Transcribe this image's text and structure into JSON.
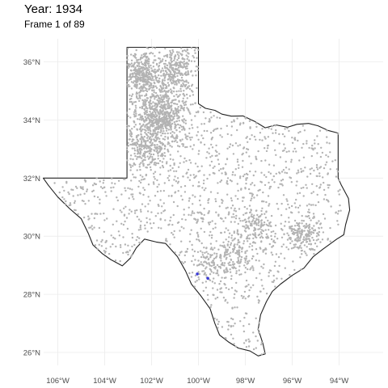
{
  "title": "Year: 1934",
  "subtitle": "Frame 1 of 89",
  "x_ticks": [
    {
      "value": -106,
      "label": "106°W"
    },
    {
      "value": -104,
      "label": "104°W"
    },
    {
      "value": -102,
      "label": "102°W"
    },
    {
      "value": -100,
      "label": "100°W"
    },
    {
      "value": -98,
      "label": "98°W"
    },
    {
      "value": -96,
      "label": "96°W"
    },
    {
      "value": -94,
      "label": "94°W"
    }
  ],
  "y_ticks": [
    {
      "value": 26,
      "label": "26°N"
    },
    {
      "value": 28,
      "label": "28°N"
    },
    {
      "value": 30,
      "label": "30°N"
    },
    {
      "value": 32,
      "label": "32°N"
    },
    {
      "value": 34,
      "label": "34°N"
    },
    {
      "value": 36,
      "label": "36°N"
    }
  ],
  "map": {
    "region": "Texas",
    "lon_range": [
      -107.1,
      -93.4
    ],
    "lat_range": [
      25.5,
      36.9
    ],
    "background_point_color": "#b3b3b3",
    "highlight_point_color": "#3b3bd6",
    "highlight_points": [
      {
        "lon": -100.05,
        "lat": 28.7
      },
      {
        "lon": -99.6,
        "lat": 28.55
      }
    ]
  }
}
